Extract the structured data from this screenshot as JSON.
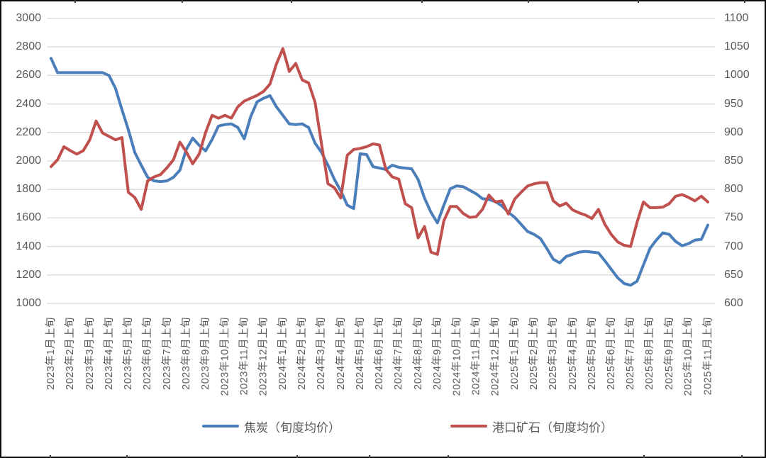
{
  "chart_data": {
    "type": "line",
    "title": "",
    "xlabel": "",
    "ylabel_left": "",
    "ylabel_right": "",
    "grid": true,
    "legend_position": "bottom",
    "background": "#ffffff",
    "gridline_color": "#d9d9d9",
    "label_color": "#595959",
    "frame_color": "#0c0c0c",
    "points_per_month": 3,
    "left_axis": {
      "min": 1000,
      "max": 3000,
      "step": 200,
      "ticks": [
        "3000",
        "2800",
        "2600",
        "2400",
        "2200",
        "2000",
        "1800",
        "1600",
        "1400",
        "1200",
        "1000"
      ]
    },
    "right_axis": {
      "min": 600,
      "max": 1100,
      "step": 50,
      "ticks": [
        "1100",
        "1050",
        "1000",
        "950",
        "900",
        "850",
        "800",
        "750",
        "700",
        "650",
        "600"
      ]
    },
    "x_labels": [
      "2023年1月上旬",
      "2023年2月上旬",
      "2023年3月上旬",
      "2023年4月上旬",
      "2023年5月上旬",
      "2023年6月上旬",
      "2023年7月上旬",
      "2023年8月上旬",
      "2023年9月上旬",
      "2023年10月上旬",
      "2023年11月上旬",
      "2023年12月上旬",
      "2024年1月上旬",
      "2024年2月上旬",
      "2024年3月上旬",
      "2024年4月上旬",
      "2024年5月上旬",
      "2024年6月上旬",
      "2024年7月上旬",
      "2024年8月上旬",
      "2024年9月上旬",
      "2024年10月上旬",
      "2024年11月上旬",
      "2024年12月上旬",
      "2025年1月上旬",
      "2025年2月上旬",
      "2025年3月上旬",
      "2025年4月上旬",
      "2025年5月上旬",
      "2025年6月上旬",
      "2025年7月上旬",
      "2025年8月上旬",
      "2025年9月上旬",
      "2025年10月上旬",
      "2025年11月上旬"
    ],
    "series": [
      {
        "name": "焦炭（旬度均价）",
        "axis": "left",
        "color": "#4a7ebb",
        "values": [
          2720,
          2620,
          2620,
          2620,
          2620,
          2620,
          2620,
          2620,
          2620,
          2600,
          2510,
          2360,
          2220,
          2060,
          1970,
          1885,
          1860,
          1855,
          1860,
          1885,
          1935,
          2080,
          2160,
          2110,
          2070,
          2150,
          2245,
          2255,
          2260,
          2235,
          2155,
          2310,
          2415,
          2440,
          2458,
          2380,
          2320,
          2260,
          2255,
          2260,
          2235,
          2125,
          2060,
          1970,
          1870,
          1790,
          1690,
          1665,
          2050,
          2045,
          1960,
          1950,
          1940,
          1970,
          1955,
          1950,
          1945,
          1870,
          1740,
          1640,
          1565,
          1690,
          1805,
          1825,
          1820,
          1795,
          1770,
          1735,
          1730,
          1715,
          1685,
          1640,
          1605,
          1555,
          1505,
          1485,
          1455,
          1385,
          1310,
          1285,
          1330,
          1345,
          1360,
          1365,
          1360,
          1355,
          1300,
          1240,
          1180,
          1140,
          1128,
          1155,
          1270,
          1385,
          1445,
          1495,
          1485,
          1435,
          1405,
          1420,
          1445,
          1450,
          1550
        ]
      },
      {
        "name": "港口矿石（旬度均价）",
        "axis": "right",
        "color": "#c0504d",
        "values": [
          840,
          852,
          875,
          868,
          862,
          868,
          887,
          920,
          899,
          893,
          887,
          891,
          795,
          786,
          765,
          815,
          822,
          826,
          838,
          852,
          883,
          866,
          845,
          862,
          900,
          930,
          925,
          930,
          925,
          945,
          955,
          960,
          965,
          972,
          985,
          1020,
          1047,
          1007,
          1021,
          992,
          987,
          953,
          880,
          810,
          803,
          785,
          860,
          870,
          872,
          875,
          880,
          878,
          835,
          822,
          818,
          775,
          768,
          715,
          735,
          690,
          686,
          745,
          770,
          770,
          758,
          751,
          752,
          765,
          790,
          778,
          780,
          757,
          783,
          795,
          806,
          810,
          812,
          812,
          780,
          771,
          776,
          764,
          759,
          755,
          749,
          765,
          739,
          721,
          708,
          702,
          700,
          742,
          778,
          768,
          768,
          769,
          775,
          788,
          791,
          786,
          780,
          788,
          778
        ]
      }
    ],
    "layout": {
      "plot_x0": 72,
      "plot_x1": 998,
      "plot_y_top": 26,
      "plot_y_bottom": 428,
      "grid_x_start": 66,
      "grid_x_end": 1008,
      "legend_x": [
        285,
        635
      ],
      "frame_ticks_top": [
        105,
        256,
        410,
        594,
        744,
        899,
        1049
      ],
      "frame_ticks_bottom": [
        70,
        178,
        418,
        520,
        631,
        907,
        1045
      ]
    }
  }
}
